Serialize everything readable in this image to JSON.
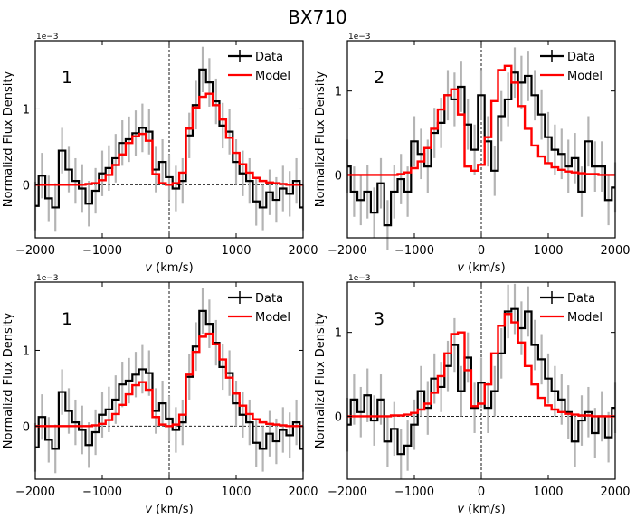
{
  "figure": {
    "title": "BX710"
  },
  "colors": {
    "data": "#000000",
    "model": "#ff0000",
    "errorbar": "#b4b4b4",
    "zero_line": "#000000"
  },
  "chart_data": [
    {
      "type": "line",
      "panel_label": "1",
      "title": "",
      "xlabel": "v (km/s)",
      "xlabel_var": "v",
      "xlabel_unit": " (km/s)",
      "ylabel": "Normalizd Flux Density",
      "y_offset_label": "1e−3",
      "xlim": [
        -2000,
        2000
      ],
      "ylim": [
        -0.7,
        1.9
      ],
      "xticks": [
        -2000,
        -1000,
        0,
        1000,
        2000
      ],
      "xtick_labels": [
        "−2000",
        "−1000",
        "0",
        "1000",
        "2000"
      ],
      "yticks": [
        0,
        1
      ],
      "ytick_labels": [
        "0",
        "1"
      ],
      "legend": [
        "Data",
        "Model"
      ],
      "data_step": 100,
      "series": [
        {
          "name": "Data",
          "x_start": -2000,
          "values": [
            -0.28,
            0.12,
            -0.18,
            -0.3,
            0.45,
            0.2,
            0.05,
            -0.05,
            -0.25,
            -0.08,
            0.15,
            0.22,
            0.35,
            0.55,
            0.6,
            0.68,
            0.75,
            0.7,
            0.2,
            0.3,
            0.1,
            -0.05,
            0.05,
            0.65,
            1.05,
            1.52,
            1.35,
            1.1,
            0.78,
            0.7,
            0.3,
            0.15,
            0.05,
            -0.22,
            -0.3,
            -0.1,
            -0.2,
            -0.05,
            -0.12,
            0.05,
            -0.3
          ],
          "errors": [
            0.32,
            0.3,
            0.3,
            0.32,
            0.3,
            0.3,
            0.3,
            0.32,
            0.3,
            0.3,
            0.3,
            0.3,
            0.32,
            0.3,
            0.3,
            0.3,
            0.32,
            0.3,
            0.3,
            0.3,
            0.3,
            0.3,
            0.3,
            0.3,
            0.32,
            0.3,
            0.32,
            0.3,
            0.3,
            0.3,
            0.3,
            0.3,
            0.3,
            0.32,
            0.3,
            0.3,
            0.3,
            0.3,
            0.3,
            0.3,
            0.3
          ]
        },
        {
          "name": "Model",
          "x_start": -2000,
          "values": [
            0,
            0,
            0,
            0,
            0,
            0,
            0,
            0,
            0.01,
            0.02,
            0.06,
            0.13,
            0.26,
            0.4,
            0.55,
            0.64,
            0.67,
            0.58,
            0.14,
            0.02,
            0,
            0.02,
            0.16,
            0.74,
            1.02,
            1.16,
            1.2,
            1.05,
            0.86,
            0.62,
            0.42,
            0.27,
            0.16,
            0.09,
            0.05,
            0.03,
            0.02,
            0.01,
            0,
            0,
            0
          ]
        }
      ]
    },
    {
      "type": "line",
      "panel_label": "2",
      "title": "",
      "xlabel": "v (km/s)",
      "xlabel_var": "v",
      "xlabel_unit": " (km/s)",
      "ylabel": "Normalizd Flux Density",
      "y_offset_label": "1e−3",
      "xlim": [
        -2000,
        2000
      ],
      "ylim": [
        -0.75,
        1.6
      ],
      "xticks": [
        -2000,
        -1000,
        0,
        1000,
        2000
      ],
      "xtick_labels": [
        "−2000",
        "−1000",
        "0",
        "1000",
        "2000"
      ],
      "yticks": [
        0,
        1
      ],
      "ytick_labels": [
        "0",
        "1"
      ],
      "legend": [
        "Data",
        "Model"
      ],
      "data_step": 100,
      "series": [
        {
          "name": "Data",
          "x_start": -2000,
          "values": [
            0.1,
            -0.2,
            -0.3,
            -0.2,
            -0.45,
            -0.1,
            -0.6,
            -0.2,
            -0.05,
            -0.2,
            0.4,
            0.25,
            0.1,
            0.5,
            0.62,
            0.95,
            0.9,
            1.05,
            0.6,
            0.3,
            0.95,
            0.4,
            0.05,
            0.7,
            0.9,
            1.22,
            1.1,
            1.18,
            0.95,
            0.72,
            0.45,
            0.3,
            0.25,
            0.1,
            0.2,
            -0.2,
            0.4,
            0.1,
            0.1,
            -0.3,
            -0.15
          ],
          "errors": [
            0.32,
            0.3,
            0.3,
            0.32,
            0.3,
            0.3,
            0.3,
            0.32,
            0.3,
            0.3,
            0.3,
            0.3,
            0.32,
            0.3,
            0.3,
            0.3,
            0.32,
            0.3,
            0.3,
            0.3,
            0.3,
            0.3,
            0.3,
            0.3,
            0.32,
            0.3,
            0.32,
            0.3,
            0.3,
            0.3,
            0.3,
            0.3,
            0.3,
            0.32,
            0.3,
            0.3,
            0.3,
            0.3,
            0.3,
            0.3,
            0.3
          ]
        },
        {
          "name": "Model",
          "x_start": -2000,
          "values": [
            0,
            0,
            0,
            0,
            0,
            0,
            0,
            0,
            0.01,
            0.03,
            0.08,
            0.16,
            0.32,
            0.55,
            0.78,
            0.95,
            1.02,
            0.72,
            0.1,
            0.05,
            0.12,
            0.45,
            0.88,
            1.25,
            1.3,
            1.1,
            0.82,
            0.55,
            0.35,
            0.22,
            0.14,
            0.09,
            0.06,
            0.04,
            0.03,
            0.02,
            0.01,
            0.01,
            0,
            0,
            0
          ]
        }
      ]
    },
    {
      "type": "line",
      "panel_label": "1",
      "title": "",
      "xlabel": "v (km/s)",
      "xlabel_var": "v",
      "xlabel_unit": " (km/s)",
      "ylabel": "Normalizd Flux Density",
      "y_offset_label": "1e−3",
      "xlim": [
        -2000,
        2000
      ],
      "ylim": [
        -0.7,
        1.9
      ],
      "xticks": [
        -2000,
        -1000,
        0,
        1000,
        2000
      ],
      "xtick_labels": [
        "−2000",
        "−1000",
        "0",
        "1000",
        "2000"
      ],
      "yticks": [
        0,
        1
      ],
      "ytick_labels": [
        "0",
        "1"
      ],
      "legend": [
        "Data",
        "Model"
      ],
      "data_step": 100,
      "series": [
        {
          "name": "Data",
          "x_start": -2000,
          "values": [
            -0.28,
            0.12,
            -0.18,
            -0.3,
            0.45,
            0.2,
            0.05,
            -0.05,
            -0.25,
            -0.08,
            0.15,
            0.22,
            0.35,
            0.55,
            0.6,
            0.68,
            0.75,
            0.7,
            0.2,
            0.3,
            0.1,
            -0.05,
            0.05,
            0.65,
            1.05,
            1.52,
            1.35,
            1.1,
            0.78,
            0.7,
            0.3,
            0.15,
            0.05,
            -0.22,
            -0.3,
            -0.1,
            -0.2,
            -0.05,
            -0.12,
            0.05,
            -0.3
          ],
          "errors": [
            0.32,
            0.3,
            0.3,
            0.32,
            0.3,
            0.3,
            0.3,
            0.32,
            0.3,
            0.3,
            0.3,
            0.3,
            0.32,
            0.3,
            0.3,
            0.3,
            0.32,
            0.3,
            0.3,
            0.3,
            0.3,
            0.3,
            0.3,
            0.3,
            0.32,
            0.3,
            0.32,
            0.3,
            0.3,
            0.3,
            0.3,
            0.3,
            0.3,
            0.32,
            0.3,
            0.3,
            0.3,
            0.3,
            0.3,
            0.3,
            0.3
          ]
        },
        {
          "name": "Model",
          "x_start": -2000,
          "values": [
            0,
            0,
            0,
            0,
            0,
            0,
            0,
            0,
            0,
            0.01,
            0.03,
            0.08,
            0.16,
            0.28,
            0.42,
            0.54,
            0.58,
            0.48,
            0.12,
            0.02,
            0,
            0.02,
            0.15,
            0.68,
            0.98,
            1.18,
            1.22,
            1.08,
            0.88,
            0.64,
            0.43,
            0.27,
            0.16,
            0.09,
            0.05,
            0.03,
            0.02,
            0.01,
            0,
            0,
            0
          ]
        }
      ]
    },
    {
      "type": "line",
      "panel_label": "3",
      "title": "",
      "xlabel": "v (km/s)",
      "xlabel_var": "v",
      "xlabel_unit": " (km/s)",
      "ylabel": "Normalizd Flux Density",
      "y_offset_label": "1e−3",
      "xlim": [
        -2000,
        2000
      ],
      "ylim": [
        -0.75,
        1.6
      ],
      "xticks": [
        -2000,
        -1000,
        0,
        1000,
        2000
      ],
      "xtick_labels": [
        "−2000",
        "−1000",
        "0",
        "1000",
        "2000"
      ],
      "yticks": [
        0,
        1
      ],
      "ytick_labels": [
        "0",
        "1"
      ],
      "legend": [
        "Data",
        "Model"
      ],
      "data_step": 100,
      "series": [
        {
          "name": "Data",
          "x_start": -2000,
          "values": [
            -0.1,
            0.2,
            0.05,
            0.25,
            -0.05,
            0.2,
            -0.3,
            -0.15,
            -0.45,
            -0.35,
            -0.1,
            0.3,
            0.1,
            0.45,
            0.35,
            0.6,
            0.85,
            0.3,
            0.7,
            0.1,
            0.4,
            0.1,
            0.3,
            0.75,
            1.25,
            1.28,
            1.05,
            1.25,
            0.85,
            0.68,
            0.45,
            0.3,
            0.2,
            0.05,
            -0.3,
            -0.05,
            0.05,
            -0.2,
            0.0,
            -0.25,
            0.1
          ],
          "errors": [
            0.32,
            0.3,
            0.3,
            0.32,
            0.3,
            0.3,
            0.3,
            0.32,
            0.3,
            0.3,
            0.3,
            0.3,
            0.32,
            0.3,
            0.3,
            0.3,
            0.32,
            0.3,
            0.3,
            0.3,
            0.3,
            0.3,
            0.3,
            0.3,
            0.32,
            0.3,
            0.32,
            0.3,
            0.3,
            0.3,
            0.3,
            0.3,
            0.3,
            0.32,
            0.3,
            0.3,
            0.3,
            0.3,
            0.3,
            0.3,
            0.3
          ]
        },
        {
          "name": "Model",
          "x_start": -2000,
          "values": [
            0,
            0,
            0,
            0,
            0,
            0,
            0,
            0.01,
            0.01,
            0.02,
            0.04,
            0.08,
            0.15,
            0.28,
            0.48,
            0.75,
            0.98,
            1.0,
            0.55,
            0.12,
            0.15,
            0.38,
            0.75,
            1.08,
            1.22,
            1.12,
            0.88,
            0.6,
            0.38,
            0.22,
            0.13,
            0.08,
            0.05,
            0.03,
            0.02,
            0.01,
            0.01,
            0,
            0,
            0,
            0
          ]
        }
      ]
    }
  ]
}
